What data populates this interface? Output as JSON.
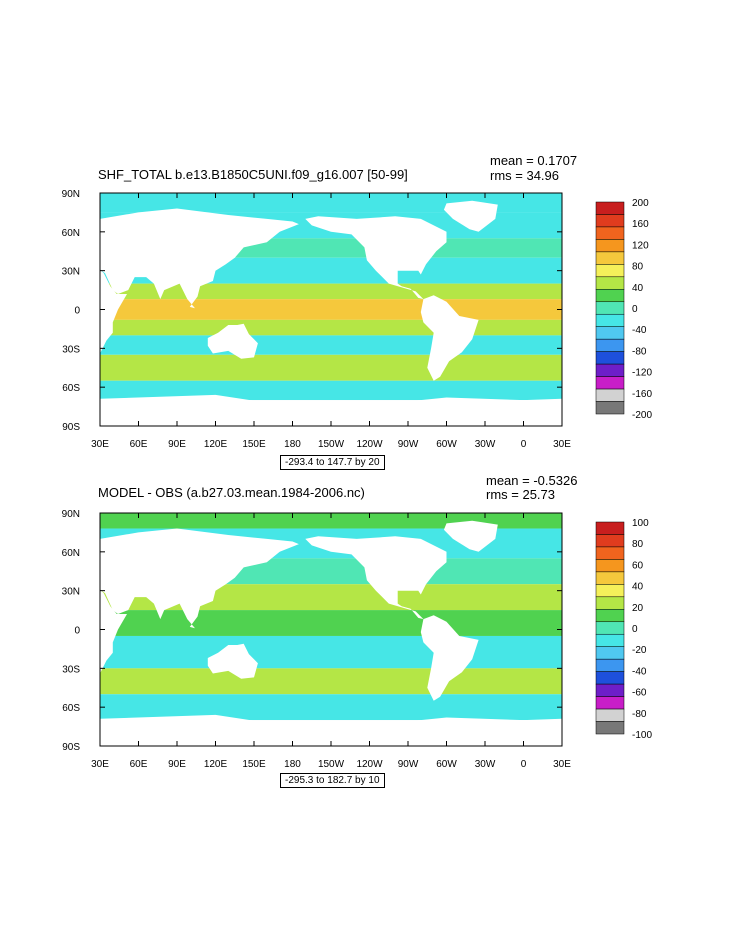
{
  "panels": [
    {
      "title": "SHF_TOTAL b.e13.B1850C5UNI.f09_g16.007 [50-99]",
      "mean": "mean = 0.1707",
      "rms": "rms = 34.96",
      "range_text": "-293.4 to 147.7 by 20",
      "lat_labels": [
        "90N",
        "60N",
        "30N",
        "0",
        "30S",
        "60S",
        "90S"
      ],
      "lon_labels": [
        "30E",
        "60E",
        "90E",
        "120E",
        "150E",
        "180",
        "150W",
        "120W",
        "90W",
        "60W",
        "30W",
        "0",
        "30E"
      ],
      "colorbar_labels": [
        "200",
        "160",
        "120",
        "80",
        "40",
        "0",
        "-40",
        "-80",
        "-120",
        "-160",
        "-200"
      ],
      "colorbar_colors": [
        "#c81e1e",
        "#e03c1e",
        "#f0641e",
        "#f5961e",
        "#f5c83c",
        "#f5f05a",
        "#b4e646",
        "#50d250",
        "#50e6b4",
        "#46e6e6",
        "#50c8f0",
        "#3c96f0",
        "#1e50dc",
        "#6e1ec8",
        "#c81ec8",
        "#d2d2d2",
        "#787878"
      ]
    },
    {
      "title": "MODEL - OBS (a.b27.03.mean.1984-2006.nc)",
      "mean": "mean = -0.5326",
      "rms": "rms = 25.73",
      "range_text": "-295.3 to 182.7 by 10",
      "lat_labels": [
        "90N",
        "60N",
        "30N",
        "0",
        "30S",
        "60S",
        "90S"
      ],
      "lon_labels": [
        "30E",
        "60E",
        "90E",
        "120E",
        "150E",
        "180",
        "150W",
        "120W",
        "90W",
        "60W",
        "30W",
        "0",
        "30E"
      ],
      "colorbar_labels": [
        "100",
        "80",
        "60",
        "40",
        "20",
        "0",
        "-20",
        "-40",
        "-60",
        "-80",
        "-100"
      ],
      "colorbar_colors": [
        "#c81e1e",
        "#e03c1e",
        "#f0641e",
        "#f5961e",
        "#f5c83c",
        "#f5f05a",
        "#b4e646",
        "#50d250",
        "#50e6b4",
        "#46e6e6",
        "#50c8f0",
        "#3c96f0",
        "#1e50dc",
        "#6e1ec8",
        "#c81ec8",
        "#d2d2d2",
        "#787878"
      ]
    }
  ]
}
